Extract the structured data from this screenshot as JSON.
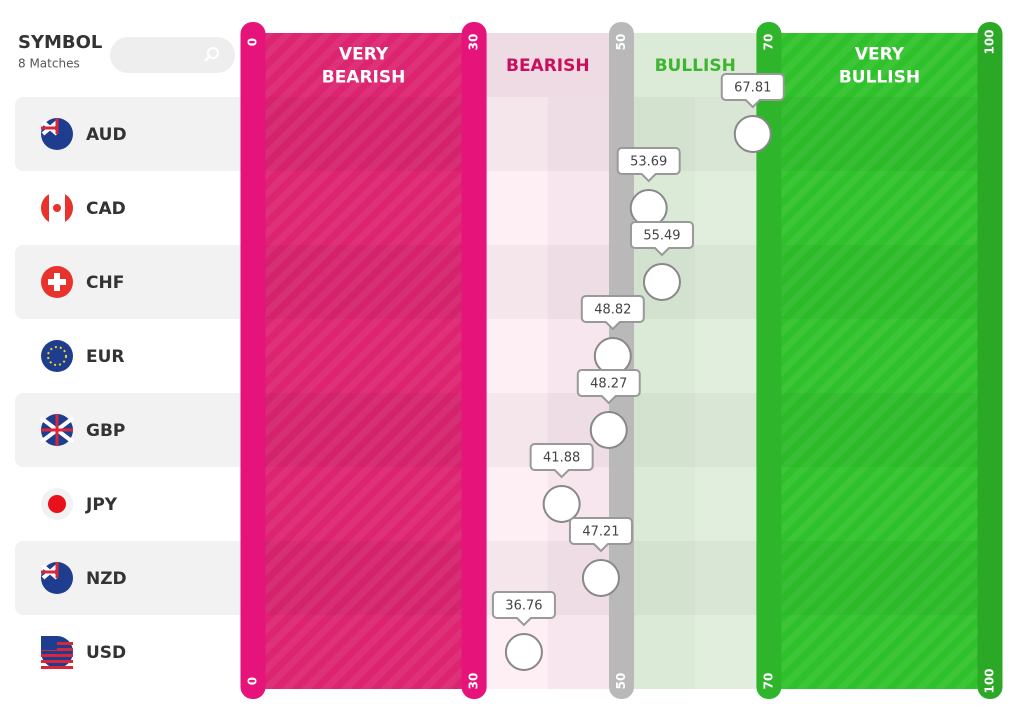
{
  "header": {
    "title": "SYMBOL",
    "subtitle": "8 Matches"
  },
  "zones": [
    {
      "label": [
        "VERY",
        "BEARISH"
      ]
    },
    {
      "label": [
        "BEARISH"
      ]
    },
    {
      "label": [
        "BULLISH"
      ]
    },
    {
      "label": [
        "VERY",
        "BULLISH"
      ]
    }
  ],
  "scale": {
    "ticks": [
      0,
      30,
      50,
      70,
      100
    ]
  },
  "rows": [
    {
      "symbol": "AUD",
      "value": 67.81
    },
    {
      "symbol": "CAD",
      "value": 53.69
    },
    {
      "symbol": "CHF",
      "value": 55.49
    },
    {
      "symbol": "EUR",
      "value": 48.82
    },
    {
      "symbol": "GBP",
      "value": 48.27
    },
    {
      "symbol": "JPY",
      "value": 41.88
    },
    {
      "symbol": "NZD",
      "value": 47.21
    },
    {
      "symbol": "USD",
      "value": 36.76
    }
  ]
}
